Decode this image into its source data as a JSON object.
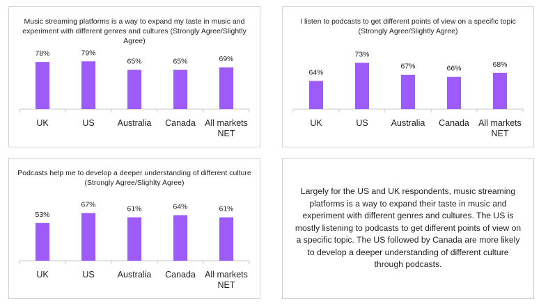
{
  "chart_data": [
    {
      "type": "bar",
      "title": "Music streaming platforms is a way to expand my taste in music and experiment with different genres and cultures (Strongly Agree/Slightly Agree)",
      "categories": [
        "UK",
        "US",
        "Australia",
        "Canada",
        "All markets NET"
      ],
      "values": [
        78,
        79,
        65,
        65,
        69
      ],
      "value_labels": [
        "78%",
        "79%",
        "65%",
        "65%",
        "69%"
      ],
      "ylim": [
        0,
        100
      ],
      "grid": false,
      "color": "#9D5CF9"
    },
    {
      "type": "bar",
      "title": "I listen to podcasts to get different points of view on a specific topic (Strongly Agree/Slightly Agree)",
      "categories": [
        "UK",
        "US",
        "Australia",
        "Canada",
        "All markets NET"
      ],
      "values": [
        64,
        73,
        67,
        66,
        68
      ],
      "value_labels": [
        "64%",
        "73%",
        "67%",
        "66%",
        "68%"
      ],
      "ylim": [
        50,
        80
      ],
      "grid": false,
      "color": "#9D5CF9"
    },
    {
      "type": "bar",
      "title": "Podcasts help me to develop a deeper understanding of different culture (Strongly Agree/Slighlty Agree)",
      "categories": [
        "UK",
        "US",
        "Australia",
        "Canada",
        "All markets NET"
      ],
      "values": [
        53,
        67,
        61,
        64,
        61
      ],
      "value_labels": [
        "53%",
        "67%",
        "61%",
        "64%",
        "61%"
      ],
      "ylim": [
        0,
        85
      ],
      "grid": false,
      "color": "#9D5CF9"
    }
  ],
  "note": {
    "text": "Largely for the US and UK respondents, music streaming platforms is a way to expand their taste in music and experiment with different genres and cultures. The US is mostly listening to podcasts to get different points of view on a specific topic. The US followed by Canada are more likely to develop a deeper understanding of different culture through podcasts."
  },
  "colors": {
    "bar": "#9D5CF9",
    "axis": "#c8c8c8",
    "text": "#222222"
  }
}
